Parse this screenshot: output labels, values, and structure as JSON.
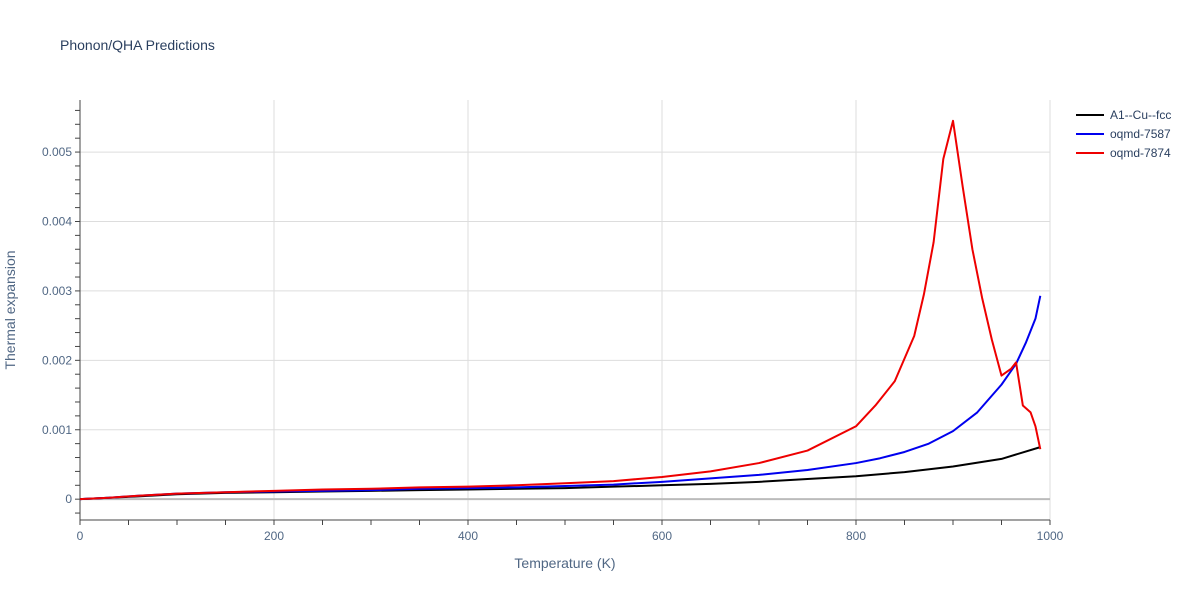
{
  "chart_data": {
    "type": "line",
    "title": "Phonon/QHA Predictions",
    "xlabel": "Temperature (K)",
    "ylabel": "Thermal expansion",
    "xlim": [
      0,
      1000
    ],
    "ylim": [
      -0.0003,
      0.00575
    ],
    "x_ticks": [
      0,
      200,
      400,
      600,
      800,
      1000
    ],
    "x_tick_labels": [
      "0",
      "200",
      "400",
      "600",
      "800",
      "1000"
    ],
    "y_ticks": [
      0,
      0.001,
      0.002,
      0.003,
      0.004,
      0.005
    ],
    "y_tick_labels": [
      "0",
      "0.001",
      "0.002",
      "0.003",
      "0.004",
      "0.005"
    ],
    "grid": true,
    "legend_position": "top-right",
    "series": [
      {
        "name": "A1--Cu--fcc",
        "color": "#000000",
        "x": [
          0,
          30,
          60,
          100,
          150,
          200,
          250,
          300,
          350,
          400,
          450,
          500,
          550,
          600,
          650,
          700,
          750,
          800,
          850,
          900,
          950,
          990
        ],
        "y": [
          0,
          2e-05,
          4e-05,
          7e-05,
          9e-05,
          0.0001,
          0.00011,
          0.00012,
          0.00013,
          0.00014,
          0.00015,
          0.00016,
          0.00018,
          0.0002,
          0.00022,
          0.00025,
          0.00029,
          0.00033,
          0.00039,
          0.00047,
          0.00058,
          0.00075
        ]
      },
      {
        "name": "oqmd-7587",
        "color": "#0000ee",
        "x": [
          0,
          30,
          60,
          100,
          150,
          200,
          250,
          300,
          350,
          400,
          450,
          500,
          550,
          600,
          650,
          700,
          750,
          800,
          825,
          850,
          875,
          900,
          925,
          950,
          965,
          975,
          985,
          990
        ],
        "y": [
          0,
          2e-05,
          5e-05,
          8e-05,
          0.0001,
          0.00011,
          0.00012,
          0.00013,
          0.00015,
          0.00016,
          0.00017,
          0.00019,
          0.00021,
          0.00025,
          0.0003,
          0.00035,
          0.00042,
          0.00052,
          0.00059,
          0.00068,
          0.0008,
          0.00098,
          0.00125,
          0.00165,
          0.00195,
          0.00225,
          0.0026,
          0.00293
        ]
      },
      {
        "name": "oqmd-7874",
        "color": "#ee0000",
        "x": [
          0,
          30,
          60,
          100,
          150,
          200,
          250,
          300,
          350,
          400,
          450,
          500,
          550,
          600,
          650,
          700,
          750,
          800,
          820,
          840,
          860,
          870,
          880,
          890,
          900,
          910,
          920,
          930,
          940,
          950,
          960,
          965,
          972,
          980,
          985,
          990
        ],
        "y": [
          0,
          2e-05,
          5e-05,
          8e-05,
          0.0001,
          0.00012,
          0.00014,
          0.00015,
          0.00017,
          0.00018,
          0.0002,
          0.00023,
          0.00026,
          0.00032,
          0.0004,
          0.00052,
          0.0007,
          0.00105,
          0.00135,
          0.0017,
          0.00235,
          0.00295,
          0.0037,
          0.0049,
          0.00545,
          0.0045,
          0.0036,
          0.0029,
          0.0023,
          0.00178,
          0.00188,
          0.00197,
          0.00135,
          0.00125,
          0.00105,
          0.00072
        ]
      }
    ]
  }
}
